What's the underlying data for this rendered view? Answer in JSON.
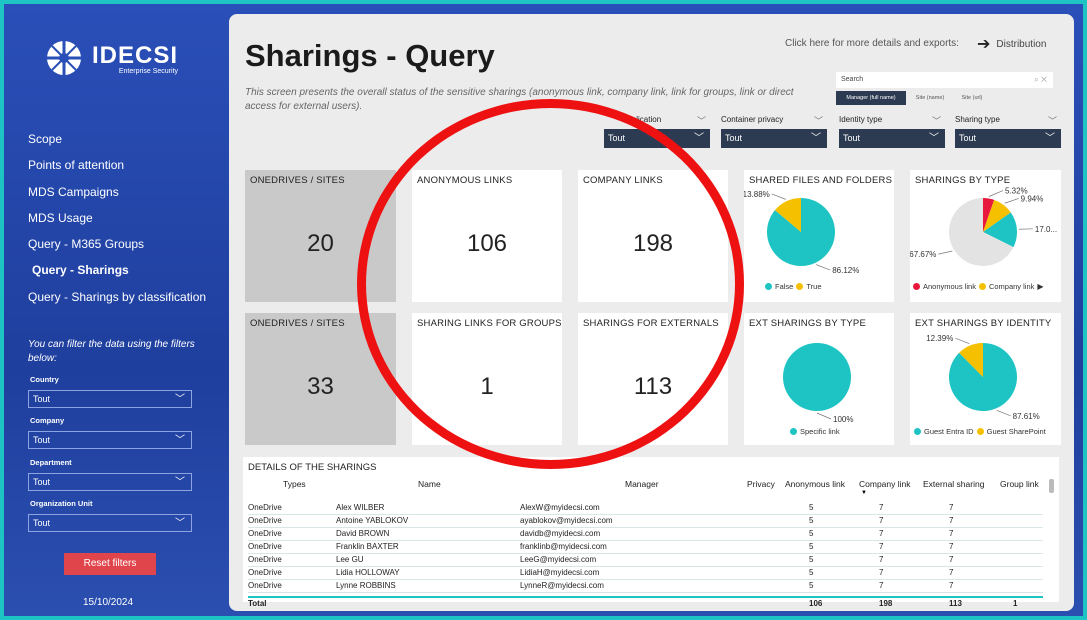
{
  "brand": {
    "name": "IDECSI",
    "subtitle": "Enterprise Security"
  },
  "sidebar": {
    "nav": [
      {
        "label": "Scope"
      },
      {
        "label": "Points of attention"
      },
      {
        "label": "MDS Campaigns"
      },
      {
        "label": "MDS Usage"
      },
      {
        "label": "Query - M365 Groups"
      },
      {
        "label": "Query - Sharings"
      },
      {
        "label": "Query - Sharings by classification"
      }
    ],
    "filter_note": "You can filter the data using the filters below:",
    "filters": [
      {
        "label": "Country",
        "value": "Tout"
      },
      {
        "label": "Company",
        "value": "Tout"
      },
      {
        "label": "Department",
        "value": "Tout"
      },
      {
        "label": "Organization Unit",
        "value": "Tout"
      }
    ],
    "reset_label": "Reset filters",
    "date": "15/10/2024"
  },
  "header": {
    "title": "Sharings - Query",
    "description": "This screen presents the overall status of the sensitive sharings (anonymous link, company link, link for groups, link or direct access for external users).",
    "export_text": "Click here for more details and exports:",
    "distribution_label": "Distribution"
  },
  "search": {
    "placeholder": "Search",
    "segments": [
      "Manager (full name)",
      "Site (name)",
      "Site (url)"
    ]
  },
  "slicers": [
    {
      "label": "Application",
      "value": "Tout"
    },
    {
      "label": "Container privacy",
      "value": "Tout"
    },
    {
      "label": "Identity type",
      "value": "Tout"
    },
    {
      "label": "Sharing type",
      "value": "Tout"
    }
  ],
  "kpis": [
    {
      "title": "ONEDRIVES / SITES",
      "value": "20"
    },
    {
      "title": "ANONYMOUS LINKS",
      "value": "106"
    },
    {
      "title": "COMPANY LINKS",
      "value": "198"
    },
    {
      "title": "ONEDRIVES / SITES",
      "value": "33"
    },
    {
      "title": "SHARING LINKS FOR GROUPS",
      "value": "1"
    },
    {
      "title": "SHARINGS FOR EXTERNALS",
      "value": "113"
    }
  ],
  "colors": {
    "teal": "#1ec4c4",
    "yellow": "#f5c000",
    "red": "#e8173c",
    "gray": "#e3e3e3",
    "circle": "#ee1111"
  },
  "chart_data": [
    {
      "type": "pie",
      "title": "SHARED FILES AND FOLDERS",
      "slices": [
        {
          "name": "False",
          "value": 86.12,
          "label": "86.12%",
          "color": "#1ec4c4"
        },
        {
          "name": "True",
          "value": 13.88,
          "label": "13.88%",
          "color": "#f5c000"
        }
      ]
    },
    {
      "type": "pie",
      "title": "SHARINGS BY TYPE",
      "slices": [
        {
          "name": "Anonymous link",
          "value": 5.32,
          "label": "5.32%",
          "color": "#e8173c"
        },
        {
          "name": "Company link",
          "value": 9.94,
          "label": "9.94%",
          "color": "#f5c000"
        },
        {
          "name": "",
          "value": 17.07,
          "label": "17.0...",
          "color": "#1ec4c4"
        },
        {
          "name": "",
          "value": 67.67,
          "label": "67.67%",
          "color": "#e3e3e3"
        }
      ]
    },
    {
      "type": "pie",
      "title": "EXT SHARINGS BY TYPE",
      "slices": [
        {
          "name": "Specific link",
          "value": 100,
          "label": "100%",
          "color": "#1ec4c4"
        }
      ]
    },
    {
      "type": "pie",
      "title": "EXT SHARINGS BY IDENTITY",
      "slices": [
        {
          "name": "Guest Entra ID",
          "value": 87.61,
          "label": "87.61%",
          "color": "#1ec4c4"
        },
        {
          "name": "Guest SharePoint",
          "value": 12.39,
          "label": "12.39%",
          "color": "#f5c000"
        }
      ]
    }
  ],
  "table": {
    "title": "DETAILS OF THE SHARINGS",
    "headers": [
      "Types",
      "Name",
      "Manager",
      "Privacy",
      "Anonymous link",
      "Company link",
      "External sharing",
      "Group link"
    ],
    "rows": [
      [
        "OneDrive",
        "Alex WILBER",
        "AlexW@myidecsi.com",
        "",
        "5",
        "7",
        "7",
        ""
      ],
      [
        "OneDrive",
        "Antoine YABLOKOV",
        "ayablokov@myidecsi.com",
        "",
        "5",
        "7",
        "7",
        ""
      ],
      [
        "OneDrive",
        "David BROWN",
        "davidb@myidecsi.com",
        "",
        "5",
        "7",
        "7",
        ""
      ],
      [
        "OneDrive",
        "Franklin BAXTER",
        "franklinb@myidecsi.com",
        "",
        "5",
        "7",
        "7",
        ""
      ],
      [
        "OneDrive",
        "Lee GU",
        "LeeG@myidecsi.com",
        "",
        "5",
        "7",
        "7",
        ""
      ],
      [
        "OneDrive",
        "Lidia HOLLOWAY",
        "LidiaH@myidecsi.com",
        "",
        "5",
        "7",
        "7",
        ""
      ],
      [
        "OneDrive",
        "Lynne ROBBINS",
        "LynneR@myidecsi.com",
        "",
        "5",
        "7",
        "7",
        ""
      ]
    ],
    "total": [
      "Total",
      "",
      "",
      "",
      "106",
      "198",
      "113",
      "1"
    ]
  }
}
